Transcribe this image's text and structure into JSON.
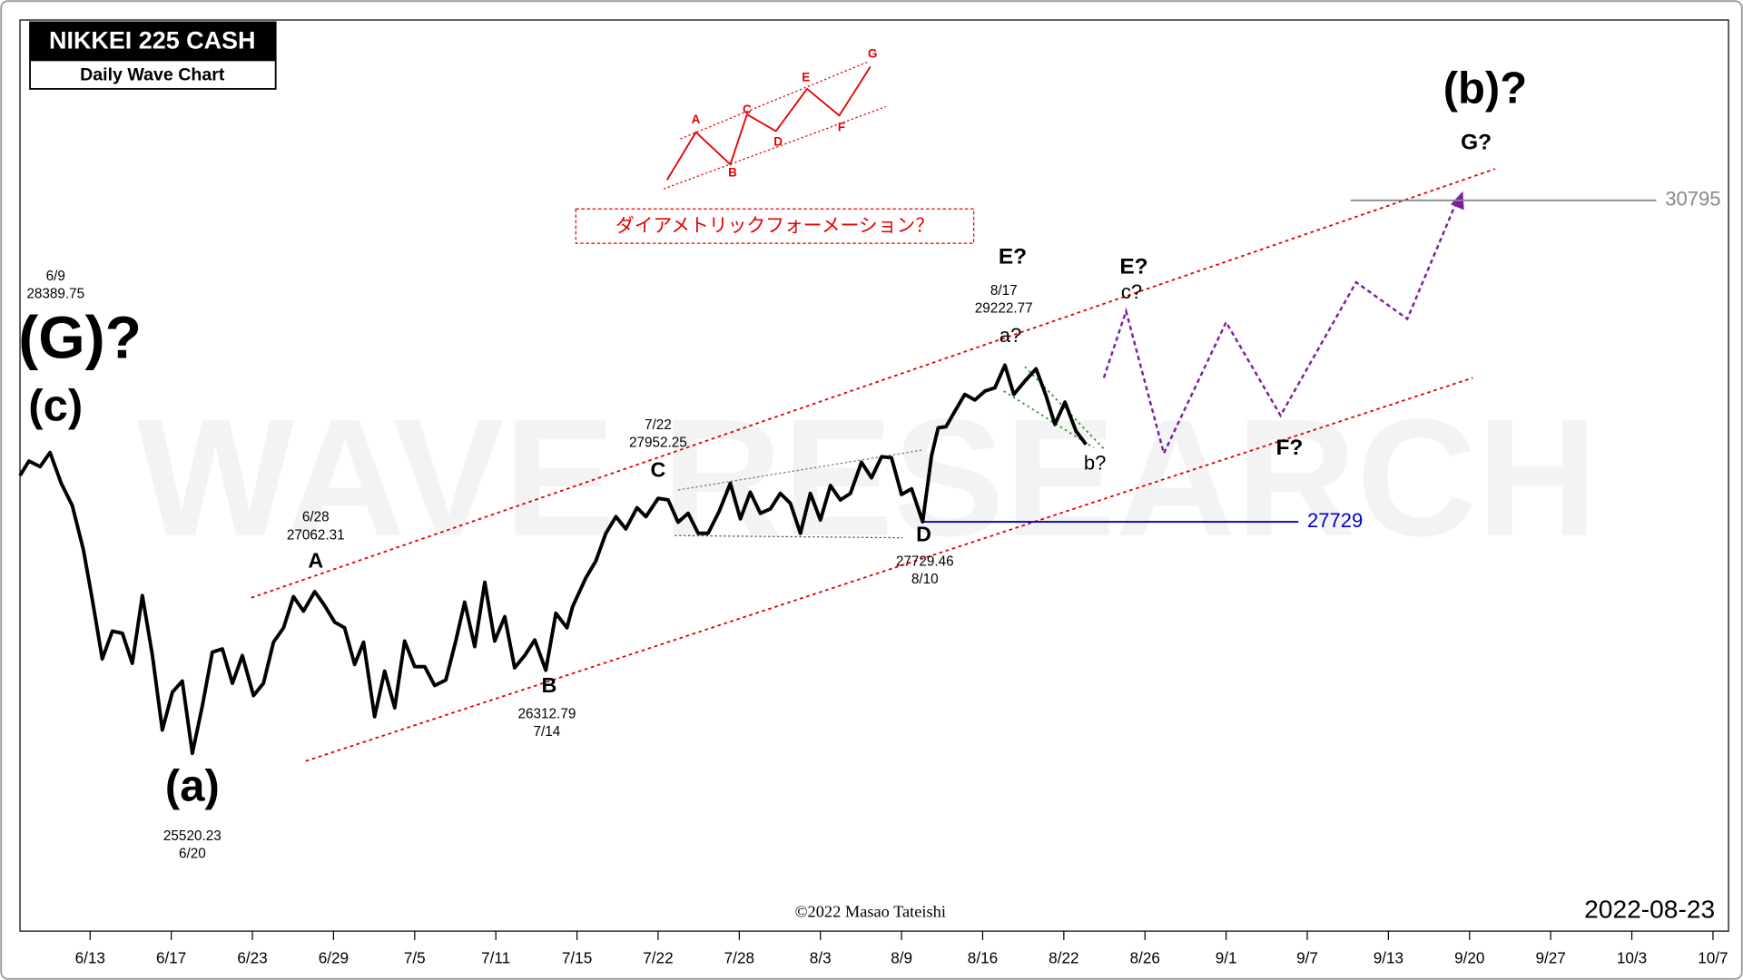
{
  "chart_data": {
    "type": "line",
    "title": "NIKKEI 225 CASH",
    "subtitle": "Daily Wave Chart",
    "xlim": [
      -4.32,
      100.96
    ],
    "xticks": [
      {
        "value": 0,
        "label": "6/13"
      },
      {
        "value": 5,
        "label": "6/17"
      },
      {
        "value": 10,
        "label": "6/23"
      },
      {
        "value": 15,
        "label": "6/29"
      },
      {
        "value": 20,
        "label": "7/5"
      },
      {
        "value": 25,
        "label": "7/11"
      },
      {
        "value": 30,
        "label": "7/15"
      },
      {
        "value": 35,
        "label": "7/22"
      },
      {
        "value": 40,
        "label": "7/28"
      },
      {
        "value": 45,
        "label": "8/3"
      },
      {
        "value": 50,
        "label": "8/9"
      },
      {
        "value": 55,
        "label": "8/16"
      },
      {
        "value": 60,
        "label": "8/22"
      },
      {
        "value": 65,
        "label": "8/26"
      },
      {
        "value": 70,
        "label": "9/1"
      },
      {
        "value": 75,
        "label": "9/7"
      },
      {
        "value": 80,
        "label": "9/13"
      },
      {
        "value": 85,
        "label": "9/20"
      },
      {
        "value": 90,
        "label": "9/27"
      },
      {
        "value": 95,
        "label": "10/3"
      },
      {
        "value": 100,
        "label": "10/7"
      }
    ],
    "ylim": [
      23824,
      32516
    ],
    "series": [
      {
        "color": "#000000",
        "x": [
          -4.32,
          -3.77,
          -3.08,
          -2.47,
          -1.78,
          -1.1,
          -0.41,
          0.14,
          0.75,
          1.37,
          1.99,
          2.6,
          3.22,
          3.84,
          4.45,
          5.07,
          5.68,
          6.3,
          6.92,
          7.53,
          8.15,
          8.77,
          9.38,
          10.07,
          10.68,
          11.3,
          11.92,
          12.53,
          13.15,
          13.84,
          14.45,
          15.07,
          15.68,
          16.3,
          16.85,
          17.53,
          18.15,
          18.77,
          19.38,
          20.0,
          20.62,
          21.23,
          21.92,
          22.53,
          23.08,
          23.7,
          24.32,
          24.93,
          25.55,
          26.16,
          26.78,
          27.4,
          28.08,
          28.7,
          29.38,
          29.73,
          30.55,
          31.16,
          31.78,
          32.4,
          33.01,
          33.7,
          34.25,
          35.0,
          35.62,
          36.23,
          36.85,
          37.47,
          38.08,
          38.77,
          39.45,
          40.07,
          40.68,
          41.3,
          41.92,
          42.53,
          43.15,
          43.77,
          44.38,
          45.0,
          45.62,
          46.23,
          46.85,
          47.53,
          48.15,
          48.77,
          49.38,
          50.0,
          50.62,
          51.3,
          51.85,
          52.26,
          52.74,
          53.29,
          53.9,
          54.52,
          55.14,
          55.75,
          56.37,
          56.92,
          57.6,
          58.29,
          58.9,
          59.45,
          60.07,
          60.75,
          61.37
        ],
        "values": [
          28170,
          28308,
          28255,
          28389.75,
          28096,
          27884,
          27460,
          26983,
          26421,
          26686,
          26665,
          26379,
          27025,
          26453,
          25743,
          26103,
          26209,
          25520.23,
          25976,
          26485,
          26516,
          26188,
          26453,
          26071,
          26188,
          26580,
          26718,
          27015,
          26877,
          27062.31,
          26930,
          26771,
          26718,
          26368,
          26580,
          25870,
          26304,
          25955,
          26591,
          26347,
          26347,
          26167,
          26220,
          26591,
          26962,
          26538,
          27152,
          26591,
          26824,
          26336,
          26453,
          26601,
          26312.79,
          26856,
          26718,
          26919,
          27195,
          27354,
          27619,
          27778,
          27661,
          27863,
          27778,
          27952.25,
          27937,
          27725,
          27810,
          27619,
          27619,
          27831,
          28096,
          27757,
          28011,
          27810,
          27852,
          28000,
          27905,
          27619,
          28000,
          27746,
          28075,
          27937,
          28000,
          28297,
          28149,
          28350,
          28340,
          27990,
          28043,
          27729.46,
          28361,
          28626,
          28636,
          28785,
          28944,
          28891,
          28976,
          29007,
          29222.77,
          28944,
          29071,
          29188,
          28933,
          28658,
          28870,
          28594,
          28467
        ]
      }
    ],
    "pivots": [
      {
        "date": "6/9",
        "value": 28389.75
      },
      {
        "date": "6/28",
        "value": 27062.31
      },
      {
        "date": "7/22",
        "value": 27952.25
      },
      {
        "date": "8/17",
        "value": 29222.77
      },
      {
        "date": "6/20",
        "value": 25520.23
      },
      {
        "date": "7/14",
        "value": 26312.79
      },
      {
        "date": "8/10",
        "value": 27729.46
      }
    ],
    "wave_labels": [
      "(G)?",
      "(c)",
      "(a)",
      "A",
      "B",
      "C",
      "D",
      "E?",
      "a?",
      "b?",
      "E?",
      "c?",
      "F?",
      "G?",
      "(b)?"
    ],
    "levels": [
      {
        "value": 27729,
        "color": "#0000cc"
      },
      {
        "value": 30795,
        "color": "#888888"
      }
    ],
    "watermark": "WAVE RESEARCH",
    "credit": "©2022 Masao Tateishi",
    "date": "2022-08-23",
    "inset": {
      "title": "ダイアメトリックフォーメーション？",
      "points": [
        "A",
        "B",
        "C",
        "D",
        "E",
        "F",
        "G"
      ]
    }
  }
}
